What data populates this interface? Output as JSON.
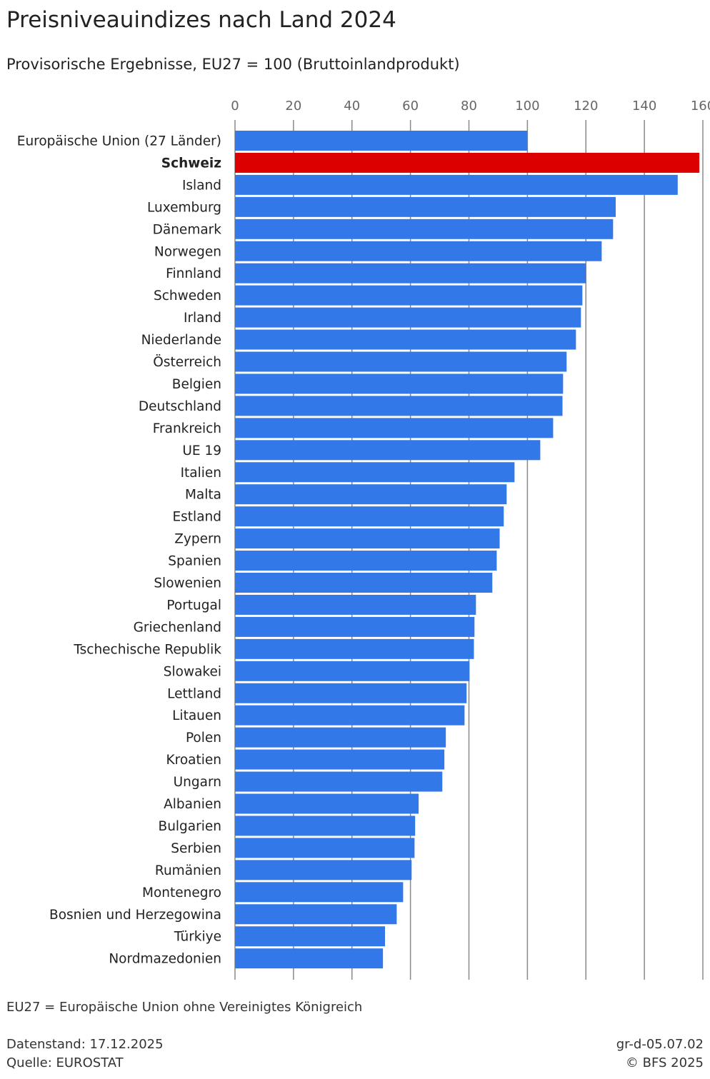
{
  "chart_data": {
    "type": "bar",
    "orientation": "horizontal",
    "title": "Preisniveauindizes nach Land 2024",
    "subtitle": "Provisorische Ergebnisse, EU27 = 100 (Bruttoinlandprodukt)",
    "xlim": [
      0,
      160
    ],
    "xticks": [
      "0",
      "20",
      "40",
      "60",
      "80",
      "100",
      "120",
      "140",
      "160"
    ],
    "grid": true,
    "colors": {
      "default": "#3278e8",
      "highlight": "#dd0000"
    },
    "highlight": "Schweiz",
    "categories": [
      "Europäische Union (27 Länder)",
      "Schweiz",
      "Island",
      "Luxemburg",
      "Dänemark",
      "Norwegen",
      "Finnland",
      "Schweden",
      "Irland",
      "Niederlande",
      "Österreich",
      "Belgien",
      "Deutschland",
      "Frankreich",
      "UE 19",
      "Italien",
      "Malta",
      "Estland",
      "Zypern",
      "Spanien",
      "Slowenien",
      "Portugal",
      "Griechenland",
      "Tschechische Republik",
      "Slowakei",
      "Lettland",
      "Litauen",
      "Polen",
      "Kroatien",
      "Ungarn",
      "Albanien",
      "Bulgarien",
      "Serbien",
      "Rumänien",
      "Montenegro",
      "Bosnien und Herzegowina",
      "Türkiye",
      "Nordmazedonien"
    ],
    "values": [
      100.0,
      158.8,
      151.4,
      130.2,
      129.3,
      125.4,
      120.0,
      118.8,
      118.3,
      116.6,
      113.4,
      112.2,
      112.0,
      108.8,
      104.4,
      95.6,
      92.9,
      91.9,
      90.5,
      89.5,
      88.0,
      82.4,
      81.9,
      81.7,
      80.2,
      79.2,
      78.5,
      72.1,
      71.6,
      70.9,
      62.8,
      61.6,
      61.4,
      60.4,
      57.5,
      55.3,
      51.3,
      50.6
    ]
  },
  "footer": {
    "note": "EU27 = Europäische Union ohne Vereinigtes Königreich",
    "date": "Datenstand: 17.12.2025",
    "source": "Quelle: EUROSTAT",
    "code": "gr-d-05.07.02",
    "copyright": "© BFS 2025"
  }
}
